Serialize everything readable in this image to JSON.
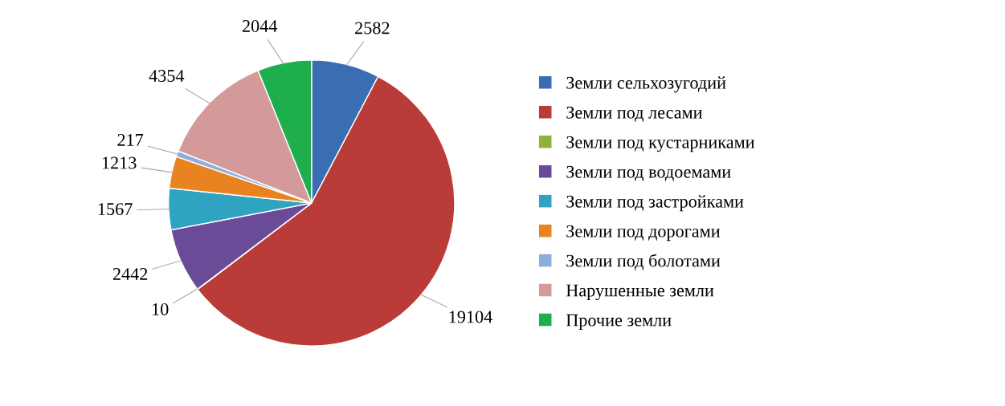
{
  "chart_data": {
    "type": "pie",
    "categories": [
      "Земли сельхозугодий",
      "Земли под лесами",
      "Земли под кустарниками",
      "Земли под водоемами",
      "Земли под застройками",
      "Земли под дорогами",
      "Земли под болотами",
      "Нарушенные земли",
      "Прочие земли"
    ],
    "values": [
      2582,
      19104,
      10,
      2442,
      1567,
      1213,
      217,
      4354,
      2044
    ],
    "colors": [
      "#3b6db3",
      "#b93c38",
      "#8fb13e",
      "#6a4b98",
      "#2fa4c0",
      "#e8831f",
      "#8daedb",
      "#d49a9a",
      "#1fae4e"
    ],
    "data_labels": true,
    "legend": "right"
  }
}
